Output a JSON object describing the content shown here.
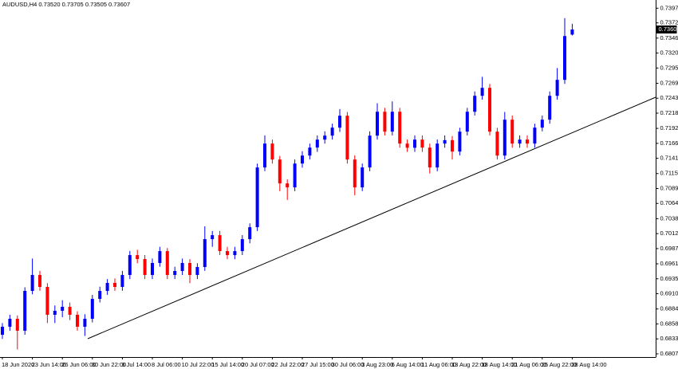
{
  "chart_data": {
    "type": "candlestick",
    "title": "AUDUSD,H4  0.73520 0.73705 0.73505 0.73607",
    "categories": [
      "18 Jun 2020",
      null,
      null,
      null,
      "23 Jun 14:00",
      null,
      null,
      null,
      "26 Jun 06:00",
      null,
      null,
      null,
      "30 Jun 22:00",
      null,
      null,
      null,
      "3 Jul 14:00",
      null,
      null,
      null,
      "8 Jul 06:00",
      null,
      null,
      null,
      "10 Jul 22:00",
      null,
      null,
      null,
      "15 Jul 14:00",
      null,
      null,
      null,
      "20 Jul 07:00",
      null,
      null,
      null,
      "22 Jul 22:00",
      null,
      null,
      null,
      "27 Jul 15:00",
      null,
      null,
      null,
      "30 Jul 06:00",
      null,
      null,
      null,
      "3 Aug 23:00",
      null,
      null,
      null,
      "6 Aug 14:00",
      null,
      null,
      null,
      "11 Aug 06:00",
      null,
      null,
      null,
      "13 Aug 22:00",
      null,
      null,
      null,
      "18 Aug 14:00",
      null,
      null,
      null,
      "21 Aug 06:00",
      null,
      null,
      null,
      "25 Aug 22:00",
      null,
      null,
      null,
      "28 Aug 14:00"
    ],
    "open": [
      0.684,
      0.68537,
      0.68673,
      0.68469,
      0.69148,
      0.6942,
      0.69216,
      0.68741,
      0.68809,
      0.68877,
      0.68741,
      0.68537,
      0.68673,
      0.69012,
      0.69148,
      0.69284,
      0.69216,
      0.6942,
      0.69759,
      0.69692,
      0.6942,
      0.69624,
      0.69827,
      0.6942,
      0.69488,
      0.69624,
      0.6942,
      0.69556,
      0.70031,
      0.70099,
      0.69827,
      0.69759,
      0.69827,
      0.70031,
      0.70235,
      0.71254,
      0.71661,
      0.71389,
      0.70982,
      0.70914,
      0.71321,
      0.71457,
      0.71593,
      0.71729,
      0.71797,
      0.71933,
      0.72136,
      0.71389,
      0.70914,
      0.71254,
      0.71797,
      0.72204,
      0.71865,
      0.72204,
      0.71661,
      0.7159,
      0.71729,
      0.71593,
      0.71254,
      0.71661,
      0.7172,
      0.71525,
      0.71865,
      0.72204,
      0.72476,
      0.72612,
      0.71865,
      0.71457,
      0.72069,
      0.71661,
      0.71729,
      0.71661,
      0.71933,
      0.72069,
      0.72476,
      0.72748,
      0.7352
    ],
    "high": [
      0.686,
      0.6874,
      0.6873,
      0.6921,
      0.697,
      0.6949,
      0.6928,
      0.689,
      0.6899,
      0.6895,
      0.688,
      0.6875,
      0.6908,
      0.6922,
      0.6935,
      0.6936,
      0.6949,
      0.6983,
      0.6985,
      0.6976,
      0.697,
      0.699,
      0.6988,
      0.6956,
      0.697,
      0.6969,
      0.6962,
      0.7025,
      0.7017,
      0.7017,
      0.699,
      0.699,
      0.701,
      0.703,
      0.7132,
      0.718,
      0.7173,
      0.7145,
      0.7105,
      0.7139,
      0.7153,
      0.7166,
      0.718,
      0.7187,
      0.72,
      0.7225,
      0.722,
      0.7146,
      0.7132,
      0.7187,
      0.7235,
      0.7227,
      0.7238,
      0.7227,
      0.7173,
      0.718,
      0.718,
      0.7166,
      0.7173,
      0.718,
      0.7179,
      0.7193,
      0.7227,
      0.7255,
      0.728,
      0.7268,
      0.7193,
      0.722,
      0.7214,
      0.718,
      0.718,
      0.72,
      0.7214,
      0.7255,
      0.7295,
      0.738,
      0.73705
    ],
    "low": [
      0.6833,
      0.6847,
      0.6815,
      0.684,
      0.6909,
      0.6915,
      0.686,
      0.686,
      0.687,
      0.6865,
      0.6847,
      0.6838,
      0.6861,
      0.6895,
      0.6908,
      0.6915,
      0.6915,
      0.6935,
      0.6962,
      0.6935,
      0.6935,
      0.6956,
      0.6935,
      0.6935,
      0.6942,
      0.6928,
      0.6935,
      0.6949,
      0.699,
      0.6976,
      0.6969,
      0.6969,
      0.6976,
      0.6996,
      0.7017,
      0.7119,
      0.7132,
      0.7085,
      0.707,
      0.7085,
      0.7125,
      0.7139,
      0.7152,
      0.7166,
      0.7173,
      0.7186,
      0.7132,
      0.7078,
      0.7085,
      0.7119,
      0.7173,
      0.718,
      0.718,
      0.7159,
      0.7152,
      0.7152,
      0.7152,
      0.7115,
      0.7119,
      0.7159,
      0.7139,
      0.7146,
      0.718,
      0.7214,
      0.7241,
      0.718,
      0.7139,
      0.7139,
      0.7159,
      0.7159,
      0.7159,
      0.7159,
      0.7187,
      0.72,
      0.7241,
      0.7268,
      0.73505
    ],
    "close": [
      0.68537,
      0.68673,
      0.68469,
      0.69148,
      0.6942,
      0.69216,
      0.68741,
      0.68809,
      0.68877,
      0.68741,
      0.68537,
      0.68673,
      0.69012,
      0.69148,
      0.69284,
      0.69216,
      0.6942,
      0.69759,
      0.69692,
      0.6942,
      0.69624,
      0.69827,
      0.6942,
      0.69488,
      0.69624,
      0.6942,
      0.69556,
      0.70031,
      0.70099,
      0.69827,
      0.69759,
      0.69827,
      0.70031,
      0.70235,
      0.71254,
      0.71661,
      0.71389,
      0.70982,
      0.70914,
      0.71321,
      0.71457,
      0.71593,
      0.71729,
      0.71797,
      0.71933,
      0.72136,
      0.71389,
      0.70914,
      0.71254,
      0.71797,
      0.72204,
      0.71865,
      0.72204,
      0.71661,
      0.7159,
      0.71729,
      0.71593,
      0.71254,
      0.71661,
      0.7172,
      0.71525,
      0.71865,
      0.72204,
      0.72476,
      0.72612,
      0.71865,
      0.71457,
      0.72069,
      0.71661,
      0.71729,
      0.71661,
      0.71933,
      0.72069,
      0.72476,
      0.72748,
      0.73495,
      0.73607
    ],
    "up_color": "#0000ff",
    "down_color": "#ff0000",
    "last_price": {
      "value": 0.73607,
      "label": "0.73607"
    },
    "ylim": [
      0.6802,
      0.7411
    ],
    "yticks": [
      {
        "value": 0.7397,
        "label": "0.73970"
      },
      {
        "value": 0.7372,
        "label": "0.73720"
      },
      {
        "value": 0.7346,
        "label": "0.73460"
      },
      0.73205,
      {
        "value": 0.7295,
        "label": "0.72950"
      },
      {
        "value": 0.7269,
        "label": "0.72690"
      },
      0.72435,
      {
        "value": 0.7218,
        "label": "0.72180"
      },
      {
        "value": 0.7192,
        "label": "0.71920"
      },
      0.71665,
      {
        "value": 0.7141,
        "label": "0.71410"
      },
      {
        "value": 0.7115,
        "label": "0.71150"
      },
      0.70895,
      {
        "value": 0.7064,
        "label": "0.70640"
      },
      {
        "value": 0.7038,
        "label": "0.70380"
      },
      0.70125,
      {
        "value": 0.6987,
        "label": "0.69870"
      },
      {
        "value": 0.6961,
        "label": "0.69610"
      },
      0.69355,
      {
        "value": 0.691,
        "label": "0.69100"
      },
      {
        "value": 0.6884,
        "label": "0.68840"
      },
      0.68585,
      {
        "value": 0.6833,
        "label": "0.68330"
      },
      0.68075
    ],
    "grid": false
  }
}
